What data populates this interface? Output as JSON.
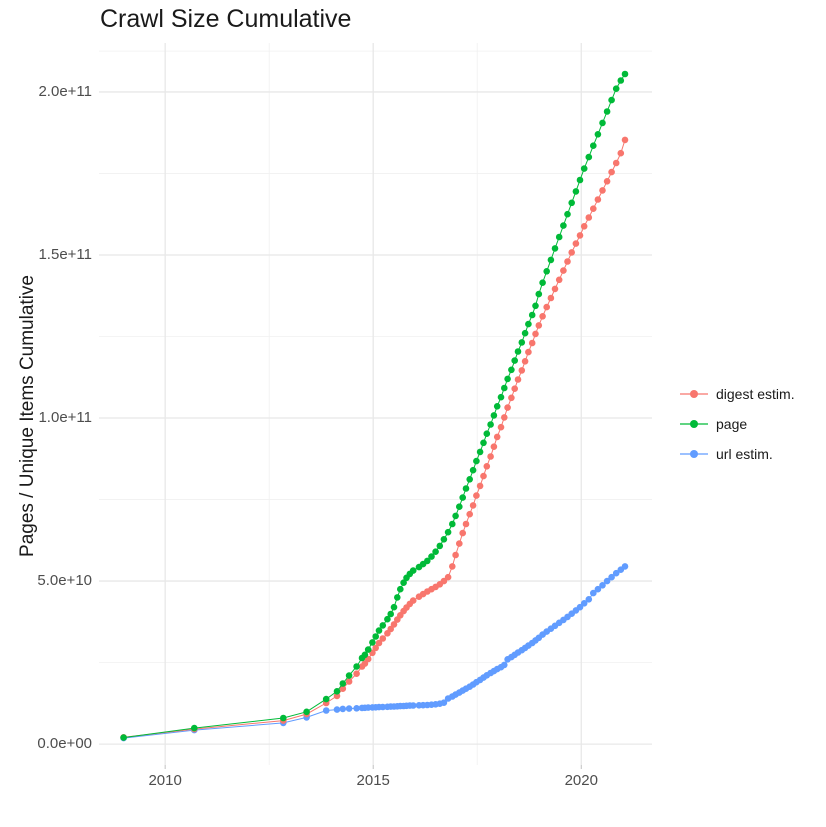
{
  "title": "Crawl Size Cumulative",
  "legend": {
    "items": [
      {
        "label": "digest estim.",
        "color": "#F8766D"
      },
      {
        "label": "page",
        "color": "#00BA38"
      },
      {
        "label": "url estim.",
        "color": "#619CFF"
      }
    ]
  },
  "axes": {
    "y_title": "Pages / Unique Items Cumulative",
    "x_title": ""
  },
  "colors": {
    "grid_major": "#e8e8e8",
    "grid_minor": "#f0f0f0",
    "tick_mark": "#c0c0c0",
    "tick_text": "#4d4d4d",
    "background": "#ffffff"
  },
  "chart_data": {
    "type": "line",
    "title": "Crawl Size Cumulative",
    "xlabel": "",
    "ylabel": "Pages / Unique Items Cumulative",
    "legend_position": "right",
    "grid": true,
    "marker": "point",
    "y_values_unit": "items (values stored in billions, 1e9)",
    "xlim": [
      2008.41,
      2021.7
    ],
    "ylim_billions": [
      -6.4,
      215.0
    ],
    "x_ticks": [
      {
        "v": 2010,
        "label": "2010"
      },
      {
        "v": 2015,
        "label": "2015"
      },
      {
        "v": 2020,
        "label": "2020"
      }
    ],
    "x_minor": [
      2012.5,
      2017.5
    ],
    "y_ticks": [
      {
        "v": 0,
        "label": "0.0e+00"
      },
      {
        "v": 50,
        "label": "5.0e+10"
      },
      {
        "v": 100,
        "label": "1.0e+11"
      },
      {
        "v": 150,
        "label": "1.5e+11"
      },
      {
        "v": 200,
        "label": "2.0e+11"
      }
    ],
    "y_minor": [
      25,
      75,
      125,
      175,
      212.5
    ],
    "x": [
      2009.0,
      2010.7,
      2012.84,
      2013.4,
      2013.87,
      2014.13,
      2014.27,
      2014.42,
      2014.6,
      2014.73,
      2014.8,
      2014.88,
      2014.98,
      2015.06,
      2015.14,
      2015.23,
      2015.34,
      2015.42,
      2015.5,
      2015.58,
      2015.65,
      2015.73,
      2015.8,
      2015.88,
      2015.96,
      2016.1,
      2016.2,
      2016.3,
      2016.4,
      2016.5,
      2016.6,
      2016.7,
      2016.8,
      2016.9,
      2016.98,
      2017.07,
      2017.15,
      2017.23,
      2017.32,
      2017.4,
      2017.48,
      2017.57,
      2017.65,
      2017.73,
      2017.82,
      2017.9,
      2017.98,
      2018.07,
      2018.15,
      2018.23,
      2018.32,
      2018.4,
      2018.48,
      2018.57,
      2018.65,
      2018.73,
      2018.82,
      2018.9,
      2018.98,
      2019.07,
      2019.17,
      2019.27,
      2019.37,
      2019.47,
      2019.57,
      2019.67,
      2019.77,
      2019.87,
      2019.97,
      2020.07,
      2020.18,
      2020.29,
      2020.4,
      2020.51,
      2020.62,
      2020.73,
      2020.84,
      2020.95,
      2021.05
    ],
    "series": [
      {
        "name": "digest estim.",
        "color": "#F8766D",
        "values_billion": [
          2.1,
          4.6,
          7.2,
          9.2,
          12.6,
          14.8,
          17.0,
          19.2,
          21.6,
          23.8,
          24.7,
          26.1,
          28.0,
          29.5,
          31.0,
          32.4,
          34.0,
          35.3,
          36.7,
          38.2,
          39.5,
          40.8,
          41.9,
          43.0,
          44.0,
          45.2,
          46.0,
          46.8,
          47.5,
          48.2,
          49.0,
          50.0,
          51.2,
          54.5,
          58.0,
          61.5,
          64.7,
          67.5,
          70.5,
          73.2,
          76.2,
          79.2,
          82.2,
          85.2,
          88.2,
          91.2,
          94.2,
          97.2,
          100.2,
          103.2,
          106.2,
          109.0,
          111.8,
          114.6,
          117.4,
          120.2,
          123.0,
          125.8,
          128.4,
          131.2,
          134.0,
          136.8,
          139.6,
          142.4,
          145.2,
          148.0,
          150.8,
          153.5,
          156.0,
          158.8,
          161.5,
          164.2,
          167.0,
          169.8,
          172.6,
          175.4,
          178.2,
          181.2,
          185.3
        ]
      },
      {
        "name": "page",
        "color": "#00BA38",
        "values_billion": [
          2.0,
          4.9,
          8.0,
          9.9,
          13.8,
          16.2,
          18.6,
          21.0,
          23.8,
          26.4,
          27.4,
          29.0,
          31.2,
          33.0,
          34.8,
          36.4,
          38.3,
          39.9,
          42.0,
          45.0,
          47.5,
          49.5,
          51.0,
          52.2,
          53.2,
          54.3,
          55.2,
          56.2,
          57.5,
          59.0,
          60.8,
          62.8,
          65.0,
          67.5,
          70.0,
          72.8,
          75.6,
          78.4,
          81.2,
          84.0,
          86.8,
          89.6,
          92.4,
          95.2,
          98.0,
          100.8,
          103.6,
          106.4,
          109.2,
          112.0,
          114.8,
          117.6,
          120.4,
          123.2,
          126.0,
          128.8,
          131.6,
          134.4,
          138.0,
          141.5,
          145.0,
          148.5,
          152.0,
          155.5,
          159.0,
          162.5,
          166.0,
          169.5,
          173.0,
          176.5,
          180.0,
          183.5,
          187.0,
          190.5,
          194.0,
          197.5,
          201.0,
          203.5,
          205.5
        ]
      },
      {
        "name": "url estim.",
        "color": "#619CFF",
        "values_billion": [
          1.85,
          4.3,
          6.5,
          8.2,
          10.3,
          10.6,
          10.8,
          10.9,
          11.0,
          11.1,
          11.15,
          11.2,
          11.25,
          11.3,
          11.35,
          11.4,
          11.45,
          11.5,
          11.55,
          11.6,
          11.65,
          11.7,
          11.75,
          11.8,
          11.85,
          11.9,
          11.95,
          12.0,
          12.1,
          12.2,
          12.4,
          12.7,
          14.0,
          14.6,
          15.2,
          15.8,
          16.4,
          17.0,
          17.6,
          18.3,
          19.0,
          19.7,
          20.4,
          21.1,
          21.8,
          22.4,
          23.0,
          23.6,
          24.3,
          26.0,
          26.7,
          27.4,
          28.1,
          28.8,
          29.5,
          30.2,
          31.0,
          31.8,
          32.6,
          33.6,
          34.5,
          35.4,
          36.3,
          37.2,
          38.1,
          39.0,
          40.0,
          41.0,
          42.0,
          43.2,
          44.4,
          46.3,
          47.5,
          48.7,
          50.0,
          51.2,
          52.4,
          53.5,
          54.5
        ]
      }
    ]
  }
}
